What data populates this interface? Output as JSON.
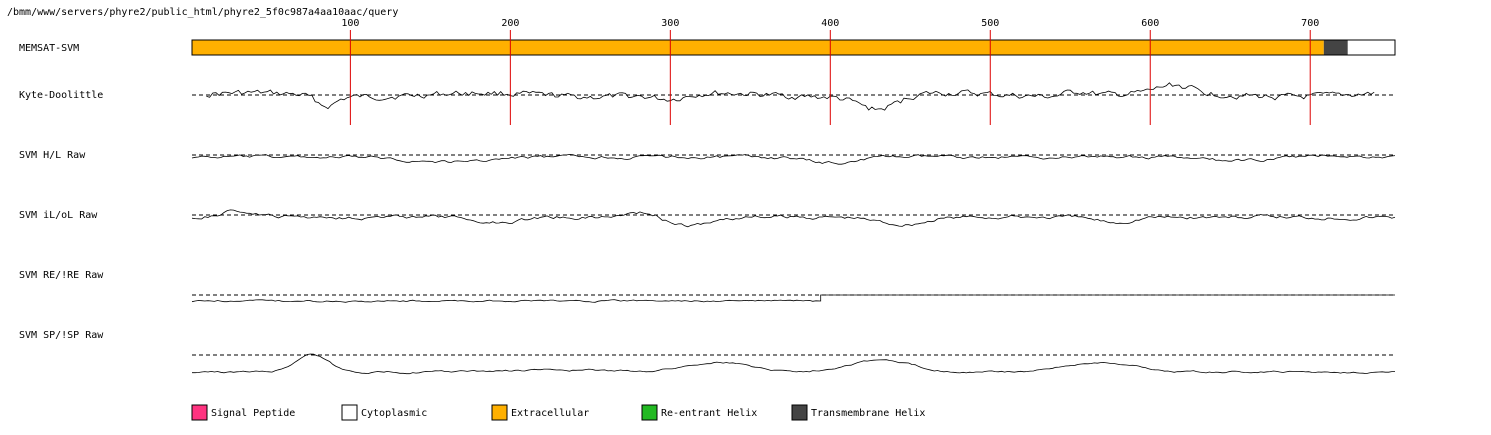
{
  "header": {
    "path": "/bmm/www/servers/phyre2/public_html/phyre2_5f0c987a4aa10aac/query"
  },
  "chart_data": {
    "type": "line",
    "x_ticks": [
      100,
      200,
      300,
      400,
      500,
      600,
      700
    ],
    "xlim": [
      1,
      753
    ],
    "topology": {
      "label": "MEMSAT-SVM",
      "segments": [
        {
          "start": 1,
          "end": 708,
          "class": "Extracellular"
        },
        {
          "start": 709,
          "end": 723,
          "class": "Transmembrane Helix"
        },
        {
          "start": 724,
          "end": 753,
          "class": "Cytoplasmic"
        }
      ]
    },
    "tracks": [
      {
        "label": "Kyte-Doolittle",
        "key": "kd"
      },
      {
        "label": "SVM H/L Raw",
        "key": "hl"
      },
      {
        "label": "SVM iL/oL Raw",
        "key": "iloL"
      },
      {
        "label": "SVM RE/!RE Raw",
        "key": "re"
      },
      {
        "label": "SVM SP/!SP Raw",
        "key": "sp"
      }
    ],
    "legend": [
      {
        "label": "Signal Peptide",
        "color": "#ff3380"
      },
      {
        "label": "Cytoplasmic",
        "color": "#ffffff"
      },
      {
        "label": "Extracellular",
        "color": "#ffb000"
      },
      {
        "label": "Re-entrant Helix",
        "color": "#22b922"
      },
      {
        "label": "Transmembrane Helix",
        "color": "#444444"
      }
    ]
  }
}
